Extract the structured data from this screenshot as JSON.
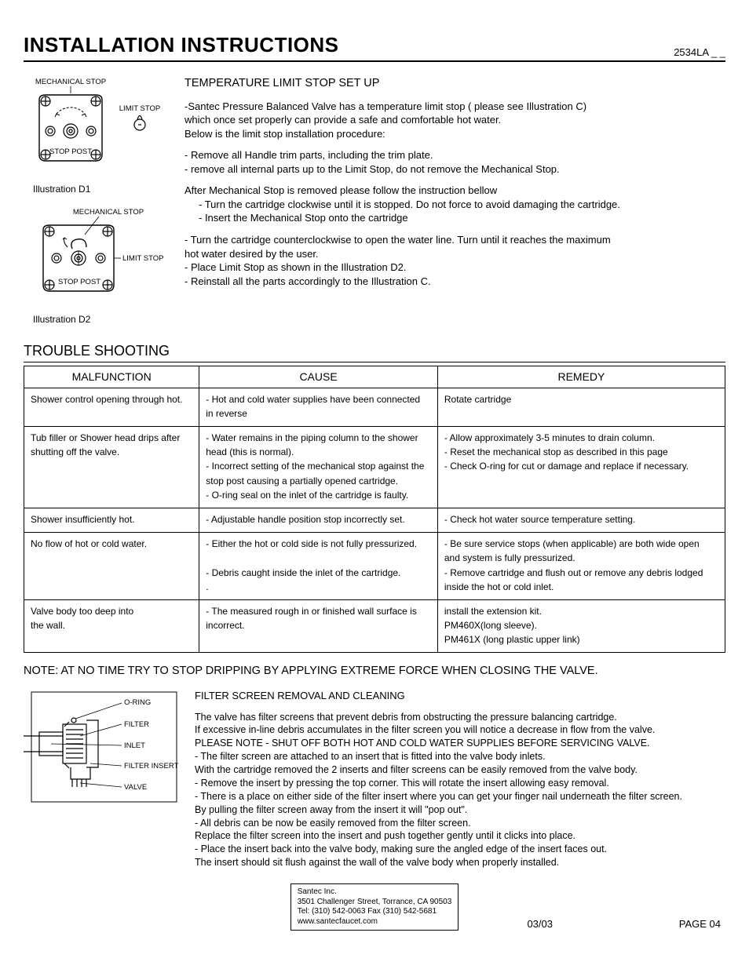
{
  "header": {
    "title": "INSTALLATION INSTRUCTIONS",
    "model": "2534LA _ _"
  },
  "illus": {
    "d1": {
      "mech": "MECHANICAL STOP",
      "limit": "LIMIT STOP",
      "post": "STOP POST",
      "cap": "Illustration D1"
    },
    "d2": {
      "mech": "MECHANICAL STOP",
      "limit": "LIMIT STOP",
      "post": "STOP POST",
      "cap": "Illustration D2"
    }
  },
  "temp": {
    "heading": "TEMPERATURE LIMIT STOP SET UP",
    "p1a": "-Santec Pressure Balanced Valve has a temperature limit stop ( please see Illustration C)",
    "p1b": " which once set properly can provide a safe and comfortable hot water.",
    "p1c": " Below is the limit stop installation procedure:",
    "b1": "-  Remove all Handle trim parts, including the trim plate.",
    "b2": "-  remove all internal parts up to the Limit Stop, do not remove the Mechanical Stop.",
    "p2": "After Mechanical Stop is removed please follow the instruction bellow",
    "b3": "- Turn the cartridge clockwise until it is stopped. Do not force to avoid damaging the cartridge.",
    "b4": "- Insert the Mechanical Stop onto the cartridge",
    "b5a": "- Turn the cartridge counterclockwise to open the water line. Turn until it reaches the maximum",
    "b5b": "   hot water desired by the user.",
    "b6": "- Place Limit Stop as shown in the Illustration D2.",
    "b7": "- Reinstall all the parts accordingly to the Illustration C."
  },
  "ts": {
    "title": "TROUBLE SHOOTING",
    "headers": [
      "MALFUNCTION",
      "CAUSE",
      "REMEDY"
    ],
    "col_widths": [
      "25%",
      "34%",
      "41%"
    ],
    "rows": [
      {
        "m": [
          "Shower control opening through hot."
        ],
        "c": [
          "- Hot and cold water supplies have  been connected",
          "   in reverse"
        ],
        "r": [
          "Rotate cartridge"
        ]
      },
      {
        "m": [
          "Tub filler or Shower head drips after",
          "shutting off the valve."
        ],
        "c": [
          "- Water remains in the piping column to the shower",
          "   head (this is normal).",
          "- Incorrect setting of the mechanical stop against the",
          "   stop post causing a partially opened cartridge.",
          "- O-ring seal on the inlet of the cartridge is faulty."
        ],
        "r": [
          "- Allow approximately 3-5 minutes to drain column.",
          "- Reset the mechanical stop as described in this page",
          "- Check O-ring for cut or damage and replace if necessary."
        ]
      },
      {
        "m": [
          "Shower insufficiently hot."
        ],
        "c": [
          "- Adjustable handle position stop incorrectly set."
        ],
        "r": [
          "- Check hot water source temperature setting."
        ]
      },
      {
        "m": [
          "No flow of hot or cold water."
        ],
        "c": [
          "- Either the hot or cold side is not fully pressurized.",
          " ",
          "- Debris caught inside the inlet of the cartridge.",
          "  ."
        ],
        "r": [
          "- Be sure service stops (when applicable) are both wide open",
          "   and system is fully pressurized.",
          "- Remove cartridge and flush out or remove any debris lodged",
          "   inside the hot or cold inlet."
        ]
      },
      {
        "m": [
          "Valve body too deep into",
          "the wall."
        ],
        "c": [
          "- The measured rough in or finished wall surface is",
          "   incorrect."
        ],
        "r": [
          "install the extension kit.",
          "PM460X(long sleeve).",
          "PM461X (long plastic upper link)"
        ]
      }
    ]
  },
  "note": "NOTE:   AT NO TIME TRY TO STOP DRIPPING BY APPLYING EXTREME FORCE WHEN CLOSING THE VALVE.",
  "filter": {
    "labels": {
      "oring": "O-RING",
      "filter": "FILTER",
      "inlet": "INLET",
      "insert": "FILTER INSERT",
      "valve": "VALVE"
    },
    "heading": "FILTER SCREEN REMOVAL AND CLEANING",
    "lines": [
      "The valve has filter screens that prevent debris from obstructing the pressure balancing cartridge.",
      "If excessive in-line debris accumulates in the filter screen you will notice a decrease in flow from the valve.",
      "PLEASE NOTE - SHUT OFF BOTH HOT AND COLD WATER SUPPLIES BEFORE SERVICING VALVE.",
      "- The filter screen are attached to an insert that is fitted into the  valve body inlets.",
      "  With the cartridge removed the 2 inserts and filter screens can be easily removed from the valve body.",
      "- Remove the insert by pressing the top corner. This will rotate the insert allowing easy removal.",
      "- There is a place on either side of the filter insert where you can get your finger nail underneath the filter screen.",
      "  By pulling the filter screen away from the insert it will \"pop out\".",
      "- All debris can be now be easily removed from the filter screen.",
      "  Replace the filter screen into the insert and push together gently until it clicks into place.",
      "- Place the insert back into the valve body, making sure the angled edge of the insert faces out.",
      "  The insert should sit flush against the wall of the valve body when properly installed."
    ]
  },
  "footer": {
    "company": "Santec Inc.",
    "addr": "3501 Challenger Street, Torrance, CA 90503",
    "phone": "Tel: (310) 542-0063  Fax (310) 542-5681",
    "web": "www.santecfaucet.com",
    "date": "03/03",
    "page": "PAGE 04"
  }
}
